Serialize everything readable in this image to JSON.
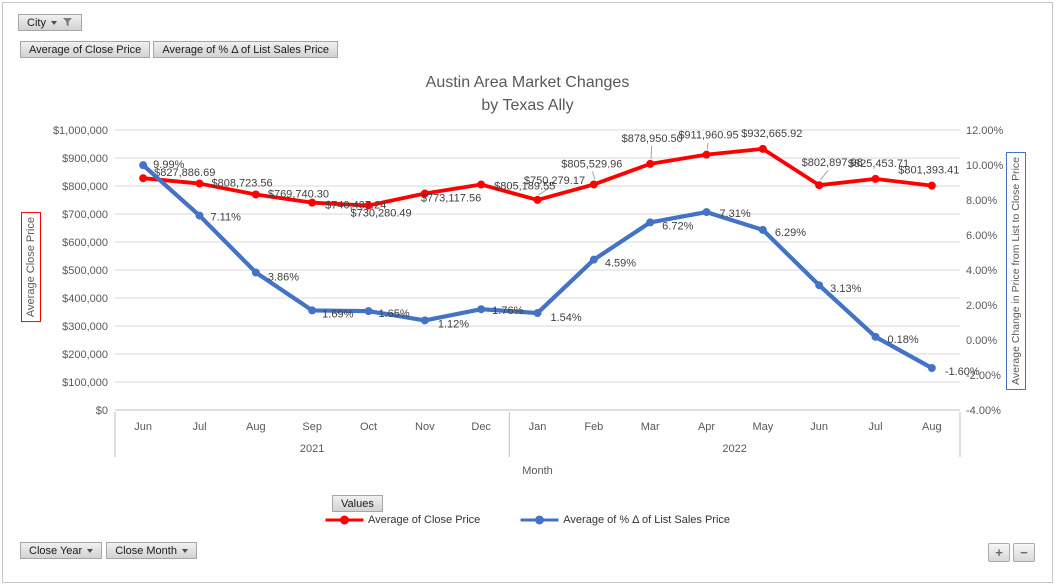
{
  "pivot": {
    "filter_button": "City",
    "field_buttons": [
      "Average of Close Price",
      "Average of % Δ of List Sales Price"
    ],
    "legend_button": "Values",
    "axis_buttons": [
      "Close Year",
      "Close Month"
    ],
    "zoom_in": "+",
    "zoom_out": "−"
  },
  "chart_data": {
    "type": "line",
    "title_lines": [
      "Austin Area Market Changes",
      "by Texas Ally"
    ],
    "xlabel": "Month",
    "x_groups": [
      {
        "year": "2021",
        "months": [
          "Jun",
          "Jul",
          "Aug",
          "Sep",
          "Oct",
          "Nov",
          "Dec"
        ]
      },
      {
        "year": "2022",
        "months": [
          "Jan",
          "Feb",
          "Mar",
          "Apr",
          "May",
          "Jun",
          "Jul",
          "Aug"
        ]
      }
    ],
    "left_axis": {
      "title": "Average Close Price",
      "min": 0,
      "max": 1000000,
      "step": 100000,
      "format": "usd"
    },
    "right_axis": {
      "title": "Average Change in Price from List to Close Price",
      "min": -4,
      "max": 12,
      "step": 2,
      "format": "pct"
    },
    "grid": true,
    "legend_position": "bottom",
    "colors": {
      "grid": "#D9D9D9",
      "axis_line": "#BFBFBF",
      "tick_text": "#595959",
      "label_text": "#404040"
    },
    "series": [
      {
        "name": "Average of Close Price",
        "color": "#FF0000",
        "axis": "left",
        "values": [
          827886.69,
          808723.56,
          769740.3,
          740437.24,
          730280.49,
          773117.56,
          805189.55,
          750279.17,
          805529.96,
          878950.5,
          911960.95,
          932665.92,
          802897.98,
          825453.71,
          801393.41
        ]
      },
      {
        "name": "Average of % Δ of List Sales Price",
        "color": "#4472C4",
        "axis": "right",
        "values": [
          9.99,
          7.11,
          3.86,
          1.69,
          1.65,
          1.12,
          1.76,
          1.54,
          4.59,
          6.72,
          7.31,
          6.29,
          3.13,
          0.18,
          -1.6
        ]
      }
    ]
  }
}
